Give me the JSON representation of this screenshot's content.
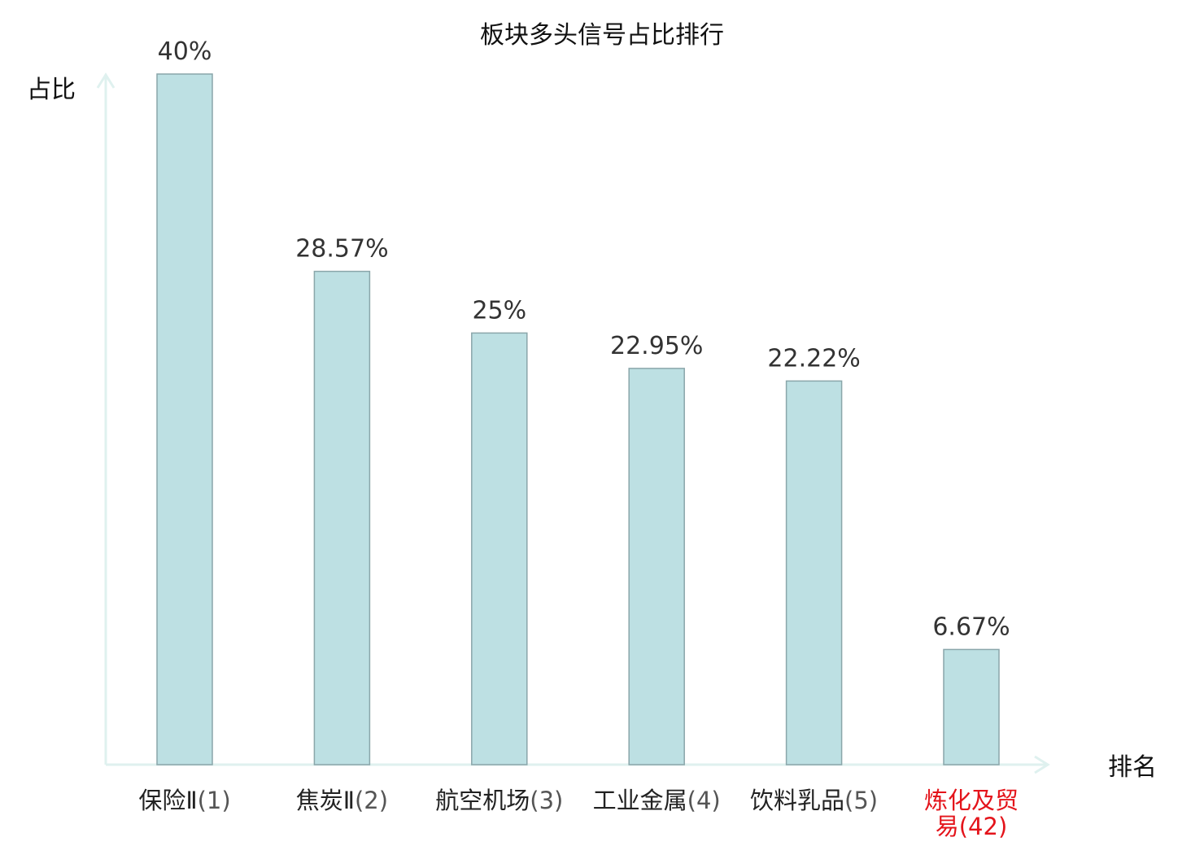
{
  "chart_data": {
    "type": "bar",
    "title": "板块多头信号占比排行",
    "ylabel": "占比",
    "xlabel": "排名",
    "categories": [
      [
        "保险Ⅱ",
        "(1)"
      ],
      [
        "焦炭Ⅱ",
        "(2)"
      ],
      [
        "航空机场",
        "(3)"
      ],
      [
        "工业金属",
        "(4)"
      ],
      [
        "饮料乳品",
        "(5)"
      ],
      [
        "炼化及贸易",
        "(42)"
      ]
    ],
    "values": [
      40,
      28.57,
      25,
      22.95,
      22.22,
      6.67
    ],
    "value_labels": [
      "40%",
      "28.57%",
      "25%",
      "22.95%",
      "22.22%",
      "6.67%"
    ],
    "ylim": [
      0,
      40
    ],
    "highlight_index": 5,
    "grid": false
  },
  "colors": {
    "bar_fill": "#bde0e3",
    "bar_stroke": "#8aa6aa",
    "axis": "#dff1ef",
    "highlight": "#e4141b",
    "text": "#111111"
  }
}
